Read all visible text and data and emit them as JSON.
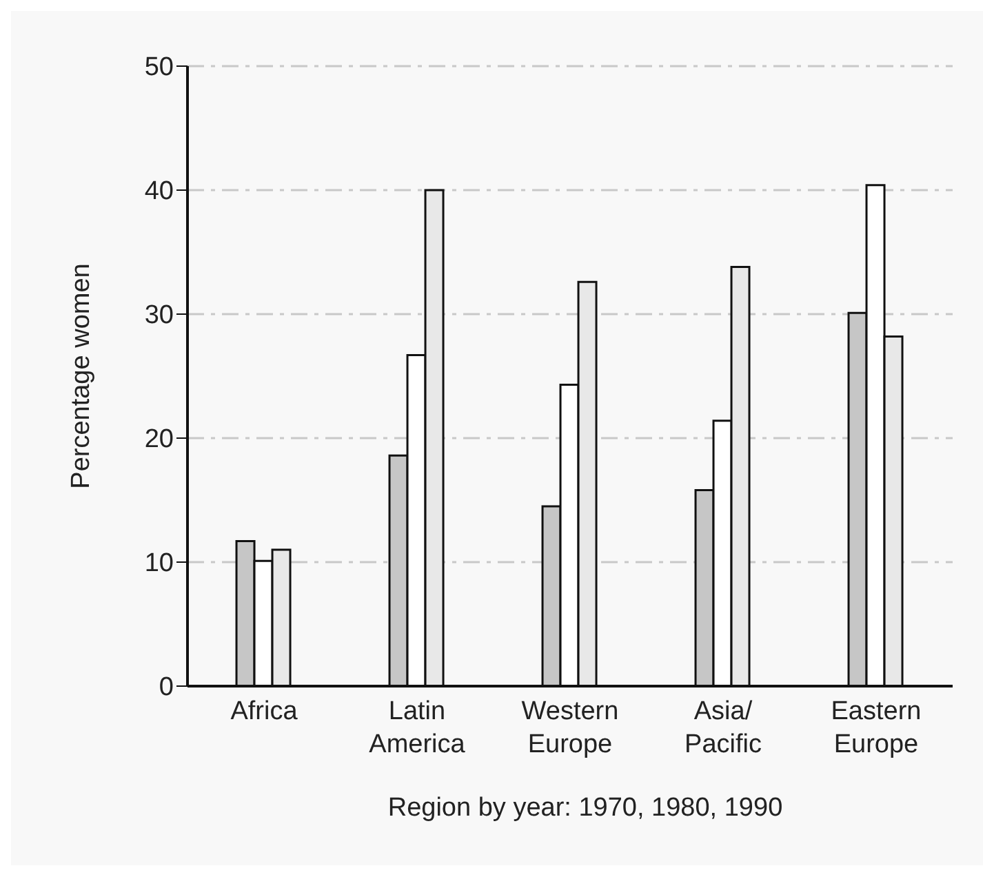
{
  "chart_data": {
    "type": "bar",
    "xlabel": "Region by year: 1970, 1980, 1990",
    "ylabel": "Percentage women",
    "categories": [
      "Africa",
      "Latin America",
      "Western Europe",
      "Asia/Pacific",
      "Eastern Europe"
    ],
    "series": [
      {
        "color": "#c6c6c6",
        "values": [
          11.7,
          18.6,
          14.5,
          15.8,
          30.1
        ]
      },
      {
        "color": "#ffffff",
        "values": [
          10.1,
          26.7,
          24.3,
          21.4,
          40.4
        ]
      },
      {
        "color": "#e8e8e8",
        "values": [
          11,
          40,
          32.6,
          33.8,
          28.2
        ]
      }
    ],
    "ylim": [
      0,
      50
    ],
    "yticks": [
      0,
      10,
      20,
      30,
      40,
      50
    ],
    "grid": "y",
    "legend": false
  }
}
